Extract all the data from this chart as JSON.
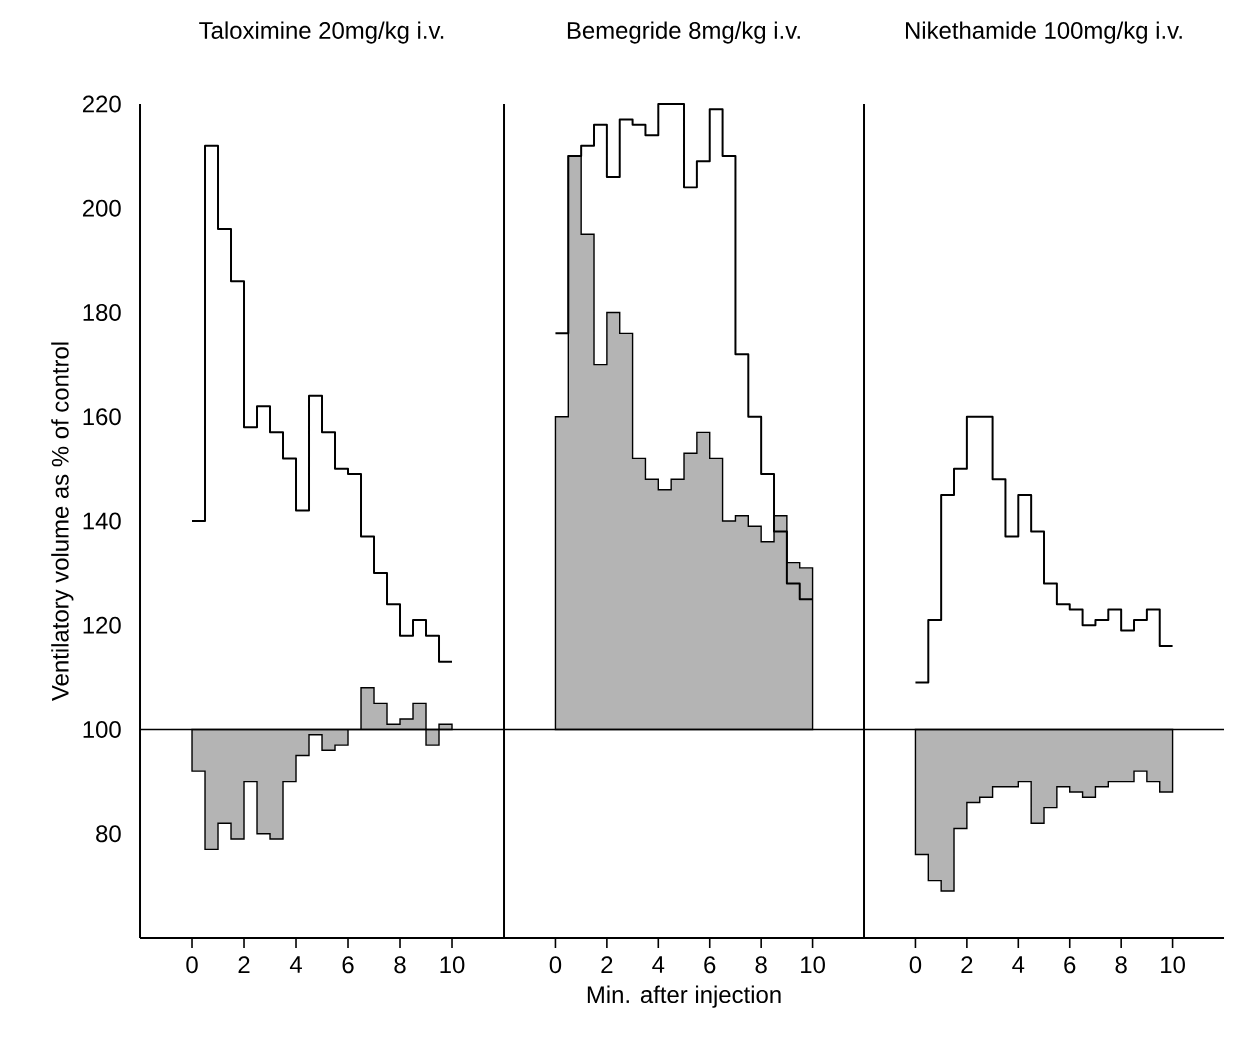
{
  "chart_data": [
    {
      "type": "step",
      "title": "Taloximine 20mg/kg i.v.",
      "ylabel": "Ventilatory volume as % of control",
      "x": [
        0,
        0.5,
        1,
        1.5,
        2,
        2.5,
        3,
        3.5,
        4,
        4.5,
        5,
        5.5,
        6,
        6.5,
        7,
        7.5,
        8,
        8.5,
        9,
        9.5,
        10
      ],
      "series": [
        {
          "type": "area",
          "color": "#b4b4b4",
          "x": [
            0,
            0,
            0.5,
            1,
            1.5,
            2,
            2.5,
            3,
            3.5,
            4,
            4.5,
            5,
            5.5,
            6,
            6.5,
            7,
            7.5,
            8,
            8.5,
            9,
            9.5,
            10,
            10
          ],
          "values": [
            100,
            92,
            77,
            82,
            79,
            90,
            80,
            79,
            90,
            95,
            99,
            96,
            97,
            100,
            108,
            105,
            101,
            102,
            105,
            97,
            101,
            101,
            100
          ]
        },
        {
          "type": "step",
          "color": "#000000",
          "values": [
            140,
            212,
            196,
            186,
            158,
            162,
            157,
            152,
            142,
            164,
            157,
            150,
            149,
            137,
            130,
            124,
            118,
            121,
            118,
            113,
            113
          ]
        }
      ],
      "xlim": [
        -2,
        12
      ],
      "ylim": [
        60,
        220
      ],
      "xticks": [
        0,
        2,
        4,
        6,
        8,
        10
      ],
      "yticks": [
        80,
        100,
        120,
        140,
        160,
        180,
        200,
        220
      ],
      "ref_lines": [
        {
          "axis": "y",
          "value": 100
        }
      ],
      "grid": false,
      "marker": "none"
    },
    {
      "type": "step",
      "title": "Bemegride 8mg/kg i.v.",
      "xlabel": "Min. after injection",
      "x": [
        0,
        0.5,
        1,
        1.5,
        2,
        2.5,
        3,
        3.5,
        4,
        4.5,
        5,
        5.5,
        6,
        6.5,
        7,
        7.5,
        8,
        8.5,
        9,
        9.5,
        10
      ],
      "series": [
        {
          "type": "area",
          "color": "#b4b4b4",
          "x": [
            0,
            0,
            0.5,
            1,
            1.5,
            2,
            2.5,
            3,
            3.5,
            4,
            4.5,
            5,
            5.5,
            6,
            6.5,
            7,
            7.5,
            8,
            8.5,
            9,
            9.5,
            10,
            10
          ],
          "values": [
            100,
            160,
            210,
            195,
            170,
            180,
            176,
            152,
            148,
            146,
            148,
            153,
            157,
            152,
            140,
            141,
            139,
            136,
            141,
            132,
            131,
            131,
            100
          ]
        },
        {
          "type": "step",
          "color": "#000000",
          "values": [
            176,
            210,
            212,
            216,
            206,
            217,
            216,
            214,
            220,
            220,
            204,
            209,
            219,
            210,
            172,
            160,
            149,
            138,
            128,
            125,
            125
          ]
        }
      ],
      "xlim": [
        -2,
        12
      ],
      "ylim": [
        60,
        220
      ],
      "xticks": [
        0,
        2,
        4,
        6,
        8,
        10
      ],
      "yticks": [
        80,
        100,
        120,
        140,
        160,
        180,
        200,
        220
      ],
      "ref_lines": [
        {
          "axis": "y",
          "value": 100
        }
      ],
      "tick_labels": "x",
      "grid": false,
      "marker": "none"
    },
    {
      "type": "step",
      "title": "Nikethamide 100mg/kg i.v.",
      "x": [
        0,
        0.5,
        1,
        1.5,
        2,
        2.5,
        3,
        3.5,
        4,
        4.5,
        5,
        5.5,
        6,
        6.5,
        7,
        7.5,
        8,
        8.5,
        9,
        9.5,
        10
      ],
      "series": [
        {
          "type": "area",
          "color": "#b4b4b4",
          "x": [
            0,
            0,
            0.5,
            1,
            1.5,
            2,
            2.5,
            3,
            3.5,
            4,
            4.5,
            5,
            5.5,
            6,
            6.5,
            7,
            7.5,
            8,
            8.5,
            9,
            9.5,
            10,
            10
          ],
          "values": [
            100,
            76,
            71,
            69,
            81,
            86,
            87,
            89,
            89,
            90,
            82,
            85,
            89,
            88,
            87,
            89,
            90,
            90,
            92,
            90,
            88,
            88,
            100
          ]
        },
        {
          "type": "step",
          "color": "#000000",
          "values": [
            109,
            121,
            145,
            150,
            160,
            160,
            148,
            137,
            145,
            138,
            128,
            124,
            123,
            120,
            121,
            123,
            119,
            121,
            123,
            116,
            116
          ]
        }
      ],
      "xlim": [
        -2,
        12
      ],
      "ylim": [
        60,
        220
      ],
      "xticks": [
        0,
        2,
        4,
        6,
        8,
        10
      ],
      "yticks": [
        80,
        100,
        120,
        140,
        160,
        180,
        200,
        220
      ],
      "ref_lines": [
        {
          "axis": "y",
          "value": 100
        }
      ],
      "tick_labels": "x",
      "grid": false,
      "marker": "none"
    }
  ]
}
